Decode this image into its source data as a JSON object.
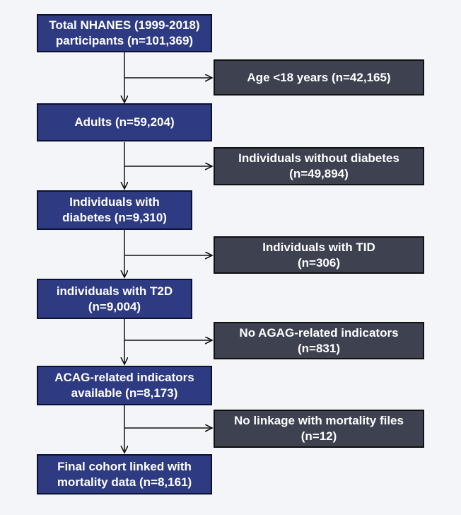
{
  "flow": {
    "main_steps": [
      {
        "line1": "Total NHANES (1999-2018)",
        "line2": "participants (n=101,369)"
      },
      {
        "line1": "Adults (n=59,204)",
        "line2": ""
      },
      {
        "line1": "Individuals with",
        "line2": "diabetes (n=9,310)"
      },
      {
        "line1": "individuals with T2D",
        "line2": "(n=9,004)"
      },
      {
        "line1": "ACAG-related indicators",
        "line2": "available (n=8,173)"
      },
      {
        "line1": "Final cohort linked with",
        "line2": "mortality data (n=8,161)"
      }
    ],
    "exclusions": [
      {
        "line1": "Age <18 years (n=42,165)",
        "line2": ""
      },
      {
        "line1": "Individuals without diabetes",
        "line2": "(n=49,894)"
      },
      {
        "line1": "Individuals with TID",
        "line2": "(n=306)"
      },
      {
        "line1": "No AGAG-related indicators",
        "line2": "(n=831)"
      },
      {
        "line1": "No linkage with mortality files",
        "line2": "(n=12)"
      }
    ]
  },
  "colors": {
    "main_box": "#2e3b83",
    "exclusion_box": "#3d4150",
    "background": "#f4f5f8",
    "arrow": "#111111"
  }
}
